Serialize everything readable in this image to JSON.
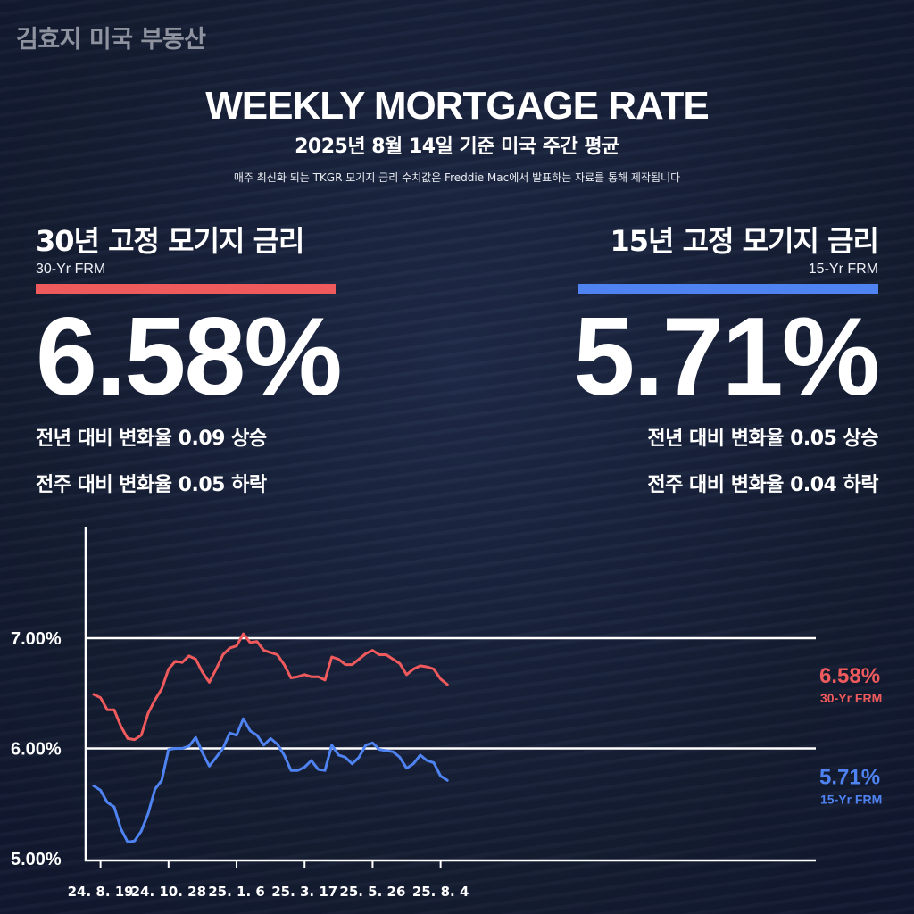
{
  "brand": "김효지 미국 부동산",
  "header": {
    "title": "WEEKLY MORTGAGE RATE",
    "subtitle": "2025년 8월 14일 기준 미국 주간 평균",
    "note": "매주 최신화 되는 TKGR 모기지 금리 수치값은 Freddie Mac에서 발표하는 자료를 통해 제작됩니다"
  },
  "panels": {
    "frm30": {
      "title": "30년 고정 모기지 금리",
      "sub": "30-Yr FRM",
      "value": "6.58%",
      "yoy": "전년 대비 변화율 0.09 상승",
      "wow": "전주 대비 변화율 0.05 하락",
      "color": "#ef5a5d"
    },
    "frm15": {
      "title": "15년 고정 모기지 금리",
      "sub": "15-Yr FRM",
      "value": "5.71%",
      "yoy": "전년 대비 변화율 0.05 상승",
      "wow": "전주 대비 변화율 0.04 하락",
      "color": "#4f83f1"
    }
  },
  "chart_data": {
    "type": "line",
    "ylim": [
      5.0,
      7.0
    ],
    "yticks": [
      "7.00%",
      "6.00%",
      "5.00%"
    ],
    "ytick_values": [
      7.0,
      6.0,
      5.0
    ],
    "gridlines_at": [
      7.0,
      6.0
    ],
    "xtick_labels": [
      "24. 8. 19",
      "24. 10. 28",
      "25. 1. 6",
      "25. 3. 17",
      "25. 5. 26",
      "25. 8. 4"
    ],
    "xtick_index": [
      1,
      11,
      21,
      31,
      41,
      51
    ],
    "series": [
      {
        "name": "30-Yr FRM",
        "end_label": "6.58%",
        "color": "#ef5a5d",
        "values": [
          6.49,
          6.46,
          6.35,
          6.35,
          6.2,
          6.09,
          6.08,
          6.12,
          6.32,
          6.44,
          6.54,
          6.72,
          6.79,
          6.78,
          6.84,
          6.81,
          6.69,
          6.6,
          6.72,
          6.85,
          6.91,
          6.93,
          7.04,
          6.96,
          6.97,
          6.89,
          6.87,
          6.85,
          6.76,
          6.64,
          6.65,
          6.67,
          6.65,
          6.65,
          6.62,
          6.83,
          6.81,
          6.76,
          6.76,
          6.81,
          6.86,
          6.89,
          6.85,
          6.85,
          6.81,
          6.77,
          6.67,
          6.72,
          6.75,
          6.74,
          6.72,
          6.63,
          6.58
        ]
      },
      {
        "name": "15-Yr FRM",
        "end_label": "5.71%",
        "color": "#4f83f1",
        "values": [
          5.66,
          5.62,
          5.51,
          5.47,
          5.27,
          5.15,
          5.16,
          5.25,
          5.41,
          5.63,
          5.71,
          5.99,
          6.0,
          6.0,
          6.02,
          6.1,
          5.96,
          5.84,
          5.92,
          6.0,
          6.14,
          6.12,
          6.27,
          6.16,
          6.12,
          6.03,
          6.09,
          6.04,
          5.94,
          5.8,
          5.8,
          5.83,
          5.89,
          5.81,
          5.8,
          6.03,
          5.94,
          5.92,
          5.86,
          5.92,
          6.03,
          6.05,
          5.99,
          5.98,
          5.97,
          5.92,
          5.82,
          5.86,
          5.94,
          5.89,
          5.87,
          5.75,
          5.71
        ]
      }
    ]
  }
}
